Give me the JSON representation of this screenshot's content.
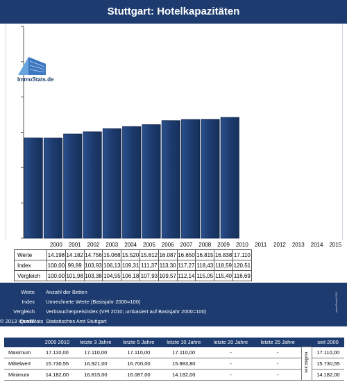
{
  "title": "Stuttgart: Hotelkapazitäten",
  "logo_text": "ImmoStats.de",
  "chart_data": {
    "type": "bar",
    "title": "Stuttgart: Hotelkapazitäten",
    "categories": [
      "2000",
      "2001",
      "2002",
      "2003",
      "2004",
      "2005",
      "2006",
      "2007",
      "2008",
      "2009",
      "2010",
      "2011",
      "2012",
      "2013",
      "2014",
      "2015"
    ],
    "series": [
      {
        "name": "Werte",
        "values": [
          14198,
          14182,
          14756,
          15068,
          15520,
          15812,
          16087,
          16650,
          16815,
          16838,
          17110,
          null,
          null,
          null,
          null,
          null
        ]
      }
    ],
    "ylim": [
      0,
      30000
    ],
    "y_gridlines": [
      0,
      5000,
      10000,
      15000,
      20000,
      25000,
      30000
    ],
    "bar_color": "#1d3b6e",
    "xlabel": "",
    "ylabel": ""
  },
  "table": {
    "years": [
      "2000",
      "2001",
      "2002",
      "2003",
      "2004",
      "2005",
      "2006",
      "2007",
      "2008",
      "2009",
      "2010",
      "2011",
      "2012",
      "2013",
      "2014",
      "2015"
    ],
    "rows": [
      {
        "label": "Werte",
        "values": [
          "14.198",
          "14.182",
          "14.756",
          "15.068",
          "15.520",
          "15.812",
          "16.087",
          "16.650",
          "16.815",
          "16.838",
          "17.110",
          "",
          "",
          "",
          "",
          ""
        ]
      },
      {
        "label": "Index",
        "values": [
          "100,00",
          "99,89",
          "103,93",
          "106,13",
          "109,31",
          "111,37",
          "113,30",
          "117,27",
          "118,43",
          "118,59",
          "120,51",
          "",
          "",
          "",
          "",
          ""
        ]
      },
      {
        "label": "Vergleich",
        "values": [
          "100,00",
          "101,98",
          "103,38",
          "104,55",
          "106,18",
          "107,93",
          "109,57",
          "112,14",
          "115,05",
          "115,40",
          "116,69",
          "",
          "",
          "",
          "",
          ""
        ]
      }
    ]
  },
  "legend": [
    {
      "key": "Werte",
      "desc": "Anzahl der Betten"
    },
    {
      "key": "Index",
      "desc": "Umrechnete Werte (Basisjahr 2000=100)"
    },
    {
      "key": "Vergleich",
      "desc": "Verbraucherpreisindex (VPI 2010; umbasiert auf Basisjahr 2000=100)"
    },
    {
      "key": "Quelle",
      "desc": "Statistisches Amt Stuttgart"
    }
  ],
  "copyright": "© 2013 ImmoStats",
  "side_note": "ImmoStats#1505",
  "summary": {
    "headers": [
      "2000  2010",
      "letzte 3 Jahre",
      "letzte 5 Jahre",
      "letzte 10 Jahre",
      "letzte 20 Jahre",
      "letzte 25 Jahre",
      "seit 2000"
    ],
    "since_label": "seit Beginn",
    "rows": [
      {
        "label": "Maximum",
        "values": [
          "17.110,00",
          "17.110,00",
          "17.110,00",
          "17.110,00",
          "-",
          "-",
          "17.110,00"
        ]
      },
      {
        "label": "Mittelwert",
        "values": [
          "15.730,55",
          "16.921,00",
          "16.700,00",
          "15.883,80",
          "-",
          "-",
          "15.730,55"
        ]
      },
      {
        "label": "Minimum",
        "values": [
          "14.182,00",
          "16.815,00",
          "16.087,00",
          "14.182,00",
          "-",
          "-",
          "14.182,00"
        ]
      }
    ]
  }
}
